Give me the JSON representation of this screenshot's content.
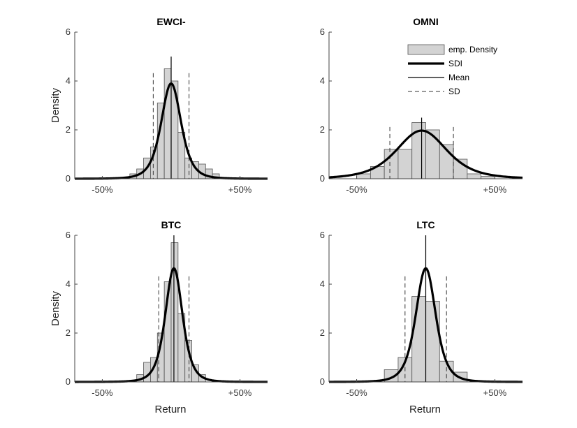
{
  "chart_data": [
    {
      "type": "bar",
      "title": "EWCI-",
      "xlabel": "",
      "ylabel": "Density",
      "xlim": [
        -70,
        70
      ],
      "ylim": [
        0,
        6
      ],
      "yticks": [
        "0",
        "2",
        "4",
        "6"
      ],
      "xticks": [
        {
          "value": -50,
          "label": "-50%"
        },
        {
          "value": 50,
          "label": "+50%"
        }
      ],
      "mean": 0,
      "sd": 13,
      "density_peak": 3.9,
      "density_scale": 7.5,
      "bins": [
        {
          "left": -30,
          "right": -25,
          "value": 0.2
        },
        {
          "left": -25,
          "right": -20,
          "value": 0.4
        },
        {
          "left": -20,
          "right": -15,
          "value": 0.85
        },
        {
          "left": -15,
          "right": -10,
          "value": 1.3
        },
        {
          "left": -10,
          "right": -5,
          "value": 3.1
        },
        {
          "left": -5,
          "right": 0,
          "value": 4.5
        },
        {
          "left": 0,
          "right": 5,
          "value": 4.0
        },
        {
          "left": 5,
          "right": 10,
          "value": 1.9
        },
        {
          "left": 10,
          "right": 15,
          "value": 0.85
        },
        {
          "left": 15,
          "right": 20,
          "value": 0.7
        },
        {
          "left": 20,
          "right": 25,
          "value": 0.6
        },
        {
          "left": 25,
          "right": 30,
          "value": 0.4
        },
        {
          "left": 30,
          "right": 35,
          "value": 0.2
        }
      ]
    },
    {
      "type": "bar",
      "title": "OMNI",
      "xlabel": "",
      "ylabel": "",
      "xlim": [
        -70,
        70
      ],
      "ylim": [
        0,
        6
      ],
      "yticks": [
        "0",
        "2",
        "4",
        "6"
      ],
      "xticks": [
        {
          "value": -50,
          "label": "-50%"
        },
        {
          "value": 50,
          "label": "+50%"
        }
      ],
      "mean": -3,
      "sd": 23,
      "density_peak": 1.97,
      "density_scale": 19,
      "bins": [
        {
          "left": -50,
          "right": -40,
          "value": 0.2
        },
        {
          "left": -40,
          "right": -30,
          "value": 0.5
        },
        {
          "left": -30,
          "right": -20,
          "value": 1.2
        },
        {
          "left": -20,
          "right": -10,
          "value": 1.2
        },
        {
          "left": -10,
          "right": 0,
          "value": 2.3
        },
        {
          "left": 0,
          "right": 10,
          "value": 2.0
        },
        {
          "left": 10,
          "right": 20,
          "value": 1.4
        },
        {
          "left": 20,
          "right": 30,
          "value": 0.8
        },
        {
          "left": 30,
          "right": 40,
          "value": 0.2
        },
        {
          "left": 40,
          "right": 50,
          "value": 0.1
        }
      ],
      "legend": {
        "position": "top-right",
        "entries": [
          "emp. Density",
          "SDI",
          "Mean",
          "SD"
        ]
      }
    },
    {
      "type": "bar",
      "title": "BTC",
      "xlabel": "Return",
      "ylabel": "Density",
      "xlim": [
        -70,
        70
      ],
      "ylim": [
        0,
        6
      ],
      "yticks": [
        "0",
        "2",
        "4",
        "6"
      ],
      "xticks": [
        {
          "value": -50,
          "label": "-50%"
        },
        {
          "value": 50,
          "label": "+50%"
        }
      ],
      "mean": 2,
      "sd": 11,
      "density_peak": 4.65,
      "density_scale": 6.5,
      "bins": [
        {
          "left": -25,
          "right": -20,
          "value": 0.3
        },
        {
          "left": -20,
          "right": -15,
          "value": 0.8
        },
        {
          "left": -15,
          "right": -10,
          "value": 1.0
        },
        {
          "left": -10,
          "right": -5,
          "value": 2.0
        },
        {
          "left": -5,
          "right": 0,
          "value": 4.1
        },
        {
          "left": 0,
          "right": 5,
          "value": 5.7
        },
        {
          "left": 5,
          "right": 10,
          "value": 2.8
        },
        {
          "left": 10,
          "right": 15,
          "value": 1.7
        },
        {
          "left": 15,
          "right": 20,
          "value": 0.7
        },
        {
          "left": 20,
          "right": 25,
          "value": 0.3
        }
      ]
    },
    {
      "type": "bar",
      "title": "LTC",
      "xlabel": "Return",
      "ylabel": "",
      "xlim": [
        -70,
        70
      ],
      "ylim": [
        0,
        6
      ],
      "yticks": [
        "0",
        "2",
        "4",
        "6"
      ],
      "xticks": [
        {
          "value": -50,
          "label": "-50%"
        },
        {
          "value": 50,
          "label": "+50%"
        }
      ],
      "mean": 0,
      "sd": 15,
      "density_peak": 4.65,
      "density_scale": 7.5,
      "bins": [
        {
          "left": -30,
          "right": -20,
          "value": 0.5
        },
        {
          "left": -20,
          "right": -10,
          "value": 1.0
        },
        {
          "left": -10,
          "right": 0,
          "value": 3.5
        },
        {
          "left": 0,
          "right": 10,
          "value": 3.3
        },
        {
          "left": 10,
          "right": 20,
          "value": 0.85
        },
        {
          "left": 20,
          "right": 30,
          "value": 0.4
        }
      ]
    }
  ],
  "colors": {
    "bar_fill": "#d3d3d3",
    "bar_stroke": "#555555",
    "density_line": "#000000",
    "axis": "#444444"
  }
}
